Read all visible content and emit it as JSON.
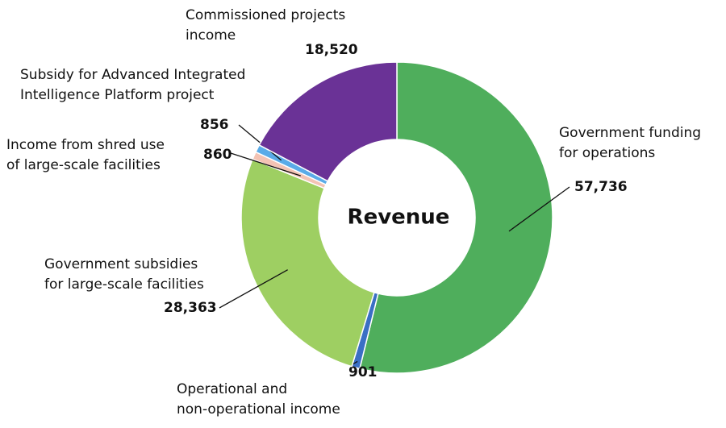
{
  "chart_data": {
    "type": "donut",
    "title": "Revenue",
    "categories": [
      [
        "Government funding",
        "for operations"
      ],
      [
        "Operational and",
        "non-operational income"
      ],
      [
        "Government subsidies",
        "for large-scale facilities"
      ],
      [
        "Income from shred use",
        "of large-scale facilities"
      ],
      [
        "Subsidy for Advanced Integrated",
        "Intelligence Platform project"
      ],
      [
        "Commissioned projects",
        "income"
      ]
    ],
    "values": [
      57736,
      901,
      28363,
      860,
      856,
      18520
    ],
    "value_labels": [
      "57,736",
      "901",
      "28,363",
      "860",
      "856",
      "18,520"
    ],
    "colors": [
      "#4fae5c",
      "#3a6fc4",
      "#9ecf62",
      "#f3c3b4",
      "#5aabe8",
      "#6a3296"
    ]
  }
}
